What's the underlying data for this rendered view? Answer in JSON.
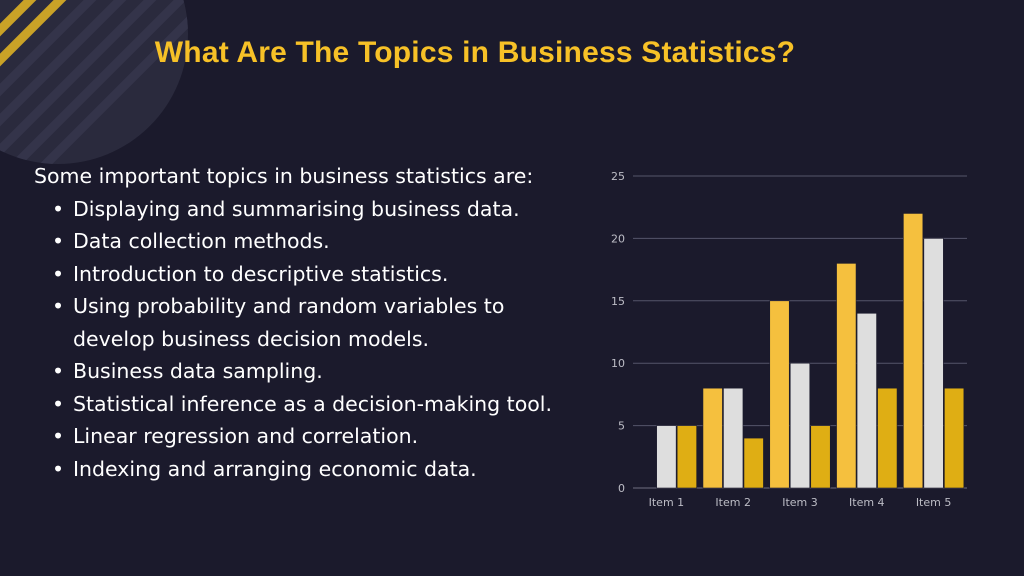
{
  "slide": {
    "title": "What Are The Topics in Business Statistics?",
    "intro": "Some important topics in business statistics are:",
    "topics": [
      "Displaying and summarising business data.",
      "Data collection methods.",
      "Introduction to descriptive statistics.",
      "Using probability and random variables to develop business decision models.",
      "Business data sampling.",
      "Statistical inference as a decision-making tool.",
      "Linear regression and correlation.",
      "Indexing and arranging economic data."
    ]
  },
  "colors": {
    "background": "#1b1a2c",
    "title": "#f7c127",
    "text": "#ffffff",
    "decoration_circle": "#2a2a3d",
    "decoration_stripe": "#c9a227"
  },
  "chart_data": {
    "type": "bar",
    "categories": [
      "Item 1",
      "Item 2",
      "Item 3",
      "Item 4",
      "Item 5"
    ],
    "series": [
      {
        "values": [
          0,
          8,
          15,
          18,
          22
        ],
        "color": "#f5c03e"
      },
      {
        "values": [
          5,
          8,
          10,
          14,
          20
        ],
        "color": "#dedede"
      },
      {
        "values": [
          5,
          4,
          5,
          8,
          8
        ],
        "color": "#dfae14"
      }
    ],
    "yticks": [
      0,
      5,
      10,
      15,
      20,
      25
    ],
    "ylim": [
      0,
      25
    ],
    "grid": true,
    "legend": "none"
  }
}
